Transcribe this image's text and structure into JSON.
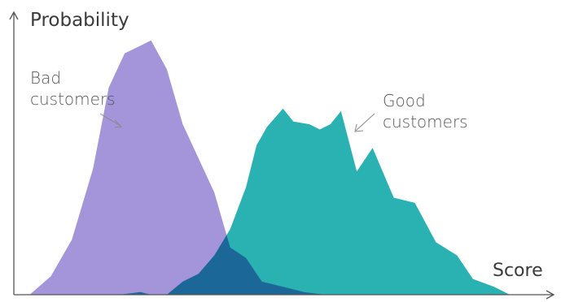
{
  "chart_data": {
    "type": "area",
    "title": "",
    "xlabel": "Score",
    "ylabel": "Probability",
    "xlim": [
      0,
      100
    ],
    "ylim": [
      0,
      100
    ],
    "grid": false,
    "legend": "none",
    "series": [
      {
        "name": "Bad customers",
        "label_lines": [
          "Bad",
          "customers"
        ],
        "color": "#a494d9",
        "x": [
          0,
          3,
          7,
          11,
          15,
          18,
          21,
          24,
          26,
          29,
          32,
          35,
          38,
          41,
          44,
          47,
          51,
          55,
          59
        ],
        "y": [
          0,
          0,
          7,
          21,
          48,
          79,
          92,
          95,
          97,
          86,
          65,
          52,
          39,
          18,
          14,
          5,
          3,
          1,
          0
        ]
      },
      {
        "name": "Good customers",
        "label_lines": [
          "Good",
          "customers"
        ],
        "color": "#2ab1b2",
        "x": [
          0,
          20,
          24,
          26,
          29,
          32,
          35,
          38,
          41,
          44,
          46,
          48,
          51,
          53,
          56,
          58,
          60,
          62,
          65,
          68,
          72,
          76,
          80,
          84,
          87,
          91,
          94,
          98
        ],
        "y": [
          0,
          0,
          1,
          0,
          0,
          5,
          8,
          15,
          25,
          41,
          57,
          64,
          71,
          66,
          65,
          63,
          65,
          70,
          47,
          56,
          37,
          35,
          20,
          15,
          6,
          3,
          0,
          0
        ]
      }
    ],
    "annotations": [
      {
        "series": 0,
        "text": "Bad customers"
      },
      {
        "series": 1,
        "text": "Good customers"
      }
    ]
  }
}
